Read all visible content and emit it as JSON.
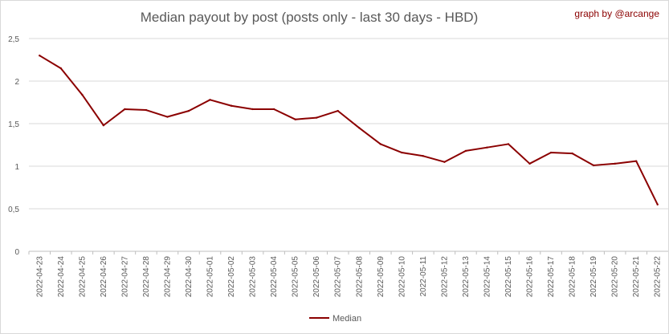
{
  "chart_data": {
    "type": "line",
    "title": "Median payout by post (posts only - last 30 days - HBD)",
    "credit": "graph by @arcange",
    "xlabel": "",
    "ylabel": "",
    "ylim": [
      0,
      2.5
    ],
    "yticks": [
      "0",
      "0,5",
      "1",
      "1,5",
      "2",
      "2,5"
    ],
    "grid": true,
    "legend_position": "bottom",
    "line_color": "#8b0000",
    "categories": [
      "2022-04-23",
      "2022-04-24",
      "2022-04-25",
      "2022-04-26",
      "2022-04-27",
      "2022-04-28",
      "2022-04-29",
      "2022-04-30",
      "2022-05-01",
      "2022-05-02",
      "2022-05-03",
      "2022-05-04",
      "2022-05-05",
      "2022-05-06",
      "2022-05-07",
      "2022-05-08",
      "2022-05-09",
      "2022-05-10",
      "2022-05-11",
      "2022-05-12",
      "2022-05-13",
      "2022-05-14",
      "2022-05-15",
      "2022-05-16",
      "2022-05-17",
      "2022-05-18",
      "2022-05-19",
      "2022-05-20",
      "2022-05-21",
      "2022-05-22"
    ],
    "series": [
      {
        "name": "Median",
        "values": [
          2.3,
          2.15,
          1.84,
          1.48,
          1.67,
          1.66,
          1.58,
          1.65,
          1.78,
          1.71,
          1.67,
          1.67,
          1.55,
          1.57,
          1.65,
          1.45,
          1.26,
          1.16,
          1.12,
          1.05,
          1.18,
          1.22,
          1.26,
          1.03,
          1.16,
          1.15,
          1.01,
          1.03,
          1.06,
          0.55
        ]
      }
    ]
  }
}
